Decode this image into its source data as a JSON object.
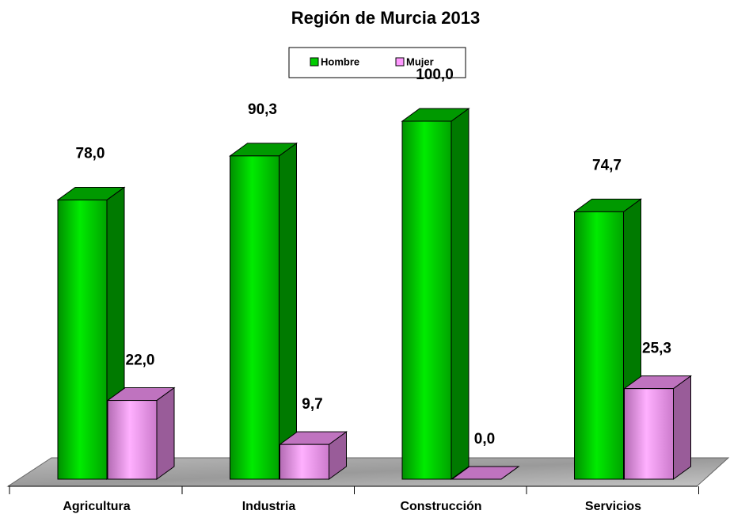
{
  "chart_data": {
    "type": "bar3d",
    "title": "Región de Murcia 2013",
    "categories": [
      "Agricultura",
      "Industria",
      "Construcción",
      "Servicios"
    ],
    "series": [
      {
        "name": "Hombre",
        "color": "#00cc00",
        "values": [
          78.0,
          90.3,
          100.0,
          74.7
        ],
        "value_labels": [
          "78,0",
          "90,3",
          "100,0",
          "74,7"
        ]
      },
      {
        "name": "Mujer",
        "color": "#ff99ff",
        "values": [
          22.0,
          9.7,
          0.0,
          25.3
        ],
        "value_labels": [
          "22,0",
          "9,7",
          "0,0",
          "25,3"
        ]
      }
    ],
    "ylim": [
      0,
      100
    ],
    "legend": "top"
  }
}
